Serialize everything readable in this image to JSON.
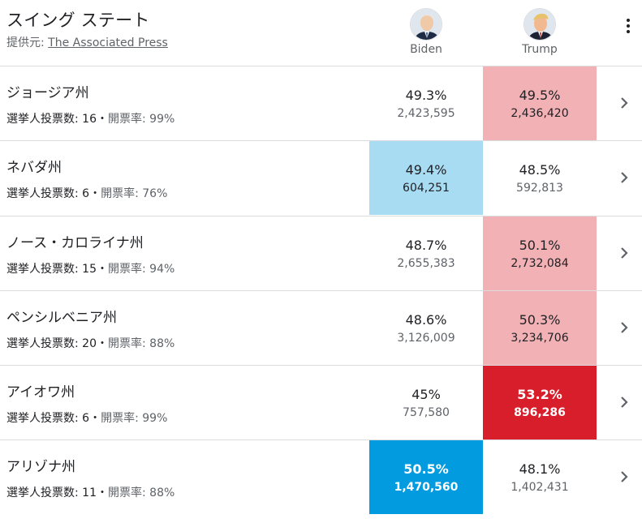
{
  "header": {
    "title": "スイング ステート",
    "provider_prefix": "提供元: ",
    "provider_link": "The Associated Press",
    "more_icon": "more-vert-icon"
  },
  "candidates": [
    {
      "name": "Biden",
      "avatar_icon": "biden-avatar",
      "color": "#039be0"
    },
    {
      "name": "Trump",
      "avatar_icon": "trump-avatar",
      "color": "#d91e2b"
    }
  ],
  "labels": {
    "electors_prefix": "選挙人投票数: ",
    "separator": "・",
    "reporting_prefix": "開票率: "
  },
  "states": [
    {
      "name": "ジョージア州",
      "electors": "16",
      "reporting": "99%",
      "biden_pct": "49.3%",
      "biden_votes": "2,423,595",
      "trump_pct": "49.5%",
      "trump_votes": "2,436,420",
      "leader": "trump",
      "called": false
    },
    {
      "name": "ネバダ州",
      "electors": "6",
      "reporting": "76%",
      "biden_pct": "49.4%",
      "biden_votes": "604,251",
      "trump_pct": "48.5%",
      "trump_votes": "592,813",
      "leader": "biden",
      "called": false
    },
    {
      "name": "ノース・カロライナ州",
      "electors": "15",
      "reporting": "94%",
      "biden_pct": "48.7%",
      "biden_votes": "2,655,383",
      "trump_pct": "50.1%",
      "trump_votes": "2,732,084",
      "leader": "trump",
      "called": false
    },
    {
      "name": "ペンシルベニア州",
      "electors": "20",
      "reporting": "88%",
      "biden_pct": "48.6%",
      "biden_votes": "3,126,009",
      "trump_pct": "50.3%",
      "trump_votes": "3,234,706",
      "leader": "trump",
      "called": false
    },
    {
      "name": "アイオワ州",
      "electors": "6",
      "reporting": "99%",
      "biden_pct": "45%",
      "biden_votes": "757,580",
      "trump_pct": "53.2%",
      "trump_votes": "896,286",
      "leader": "trump",
      "called": true
    },
    {
      "name": "アリゾナ州",
      "electors": "11",
      "reporting": "88%",
      "biden_pct": "50.5%",
      "biden_votes": "1,470,560",
      "trump_pct": "48.1%",
      "trump_votes": "1,402,431",
      "leader": "biden",
      "called": true
    }
  ]
}
